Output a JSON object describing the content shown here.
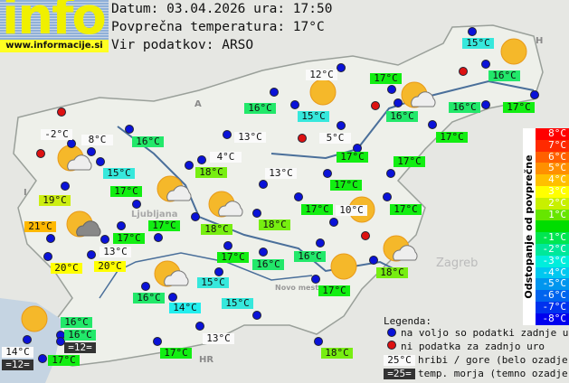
{
  "logo": {
    "text": "info",
    "url": "www.informacije.si"
  },
  "header": {
    "date_line": "Datum: 03.04.2026 ura: 17:50",
    "avg_line": "Povprečna temperatura: 17°C",
    "source_line": "Vir podatkov: ARSO"
  },
  "places": {
    "austria": "A",
    "italy": "I",
    "hungary": "H",
    "croatia": "HR",
    "zagreb": "Zagreb",
    "ljubljana": "Ljubljana",
    "novo_mesto": "Novo mesto"
  },
  "labels": [
    {
      "text": "-2°C",
      "type": "mountain"
    },
    {
      "text": "8°C",
      "type": "mountain"
    },
    {
      "text": "16°C"
    },
    {
      "text": "13°C",
      "type": "mountain"
    },
    {
      "text": "4°C",
      "type": "mountain"
    },
    {
      "text": "18°C"
    },
    {
      "text": "15°C"
    },
    {
      "text": "17°C"
    },
    {
      "text": "19°C"
    },
    {
      "text": "21°C"
    },
    {
      "text": "17°C"
    },
    {
      "text": "18°C"
    },
    {
      "text": "18°C"
    },
    {
      "text": "17°C"
    },
    {
      "text": "13°C",
      "type": "mountain"
    },
    {
      "text": "20°C"
    },
    {
      "text": "20°C"
    },
    {
      "text": "17°C"
    },
    {
      "text": "16°C"
    },
    {
      "text": "13°C",
      "type": "mountain"
    },
    {
      "text": "15°C"
    },
    {
      "text": "16°C"
    },
    {
      "text": "12°C",
      "type": "mountain"
    },
    {
      "text": "17°C"
    },
    {
      "text": "16°C"
    },
    {
      "text": "16°C"
    },
    {
      "text": "17°C"
    },
    {
      "text": "16°C"
    },
    {
      "text": "15°C"
    },
    {
      "text": "5°C",
      "type": "mountain"
    },
    {
      "text": "17°C"
    },
    {
      "text": "17°C"
    },
    {
      "text": "17°C"
    },
    {
      "text": "17°C"
    },
    {
      "text": "17°C"
    },
    {
      "text": "10°C",
      "type": "mountain"
    },
    {
      "text": "17°C"
    },
    {
      "text": "16°C"
    },
    {
      "text": "18°C"
    },
    {
      "text": "17°C"
    },
    {
      "text": "15°C"
    },
    {
      "text": "16°C"
    },
    {
      "text": "14°C"
    },
    {
      "text": "15°C"
    },
    {
      "text": "13°C",
      "type": "mountain"
    },
    {
      "text": "16°C"
    },
    {
      "text": "16°C"
    },
    {
      "text": "=12=",
      "type": "sea"
    },
    {
      "text": "14°C",
      "type": "mountain"
    },
    {
      "text": "=12=",
      "type": "sea"
    },
    {
      "text": "17°C"
    },
    {
      "text": "17°C"
    },
    {
      "text": "18°C"
    }
  ],
  "scale": {
    "title": "Odstopanje od povprečne temperature:",
    "steps": [
      {
        "label": "8°C",
        "color": "#ff0000"
      },
      {
        "label": "7°C",
        "color": "#ff2a00"
      },
      {
        "label": "6°C",
        "color": "#ff6000"
      },
      {
        "label": "5°C",
        "color": "#ff9000"
      },
      {
        "label": "4°C",
        "color": "#ffc000"
      },
      {
        "label": "3°C",
        "color": "#ffff00"
      },
      {
        "label": "2°C",
        "color": "#c8f000"
      },
      {
        "label": "1°C",
        "color": "#66e600"
      },
      {
        "label": "",
        "color": "#00dd00"
      },
      {
        "label": "-1°C",
        "color": "#00e650"
      },
      {
        "label": "-2°C",
        "color": "#00e89a"
      },
      {
        "label": "-3°C",
        "color": "#00eedd"
      },
      {
        "label": "-4°C",
        "color": "#00c8f0"
      },
      {
        "label": "-5°C",
        "color": "#0096ee"
      },
      {
        "label": "-6°C",
        "color": "#0064ee"
      },
      {
        "label": "-7°C",
        "color": "#0032ee"
      },
      {
        "label": "-8°C",
        "color": "#0000ee"
      }
    ]
  },
  "legend": {
    "title": "Legenda:",
    "available": "na voljo so podatki zadnje ure",
    "missing": "ni podatka za zadnjo uro",
    "mountain_sample": "25°C",
    "mountain_text": "hribi / gore (belo ozadje)",
    "sea_sample": "=25=",
    "sea_text": "temp. morja (temno ozadje)"
  },
  "colors": {
    "station_ok": "#0a12d8",
    "station_missing": "#dd1111",
    "sun": "#f5b82a"
  }
}
